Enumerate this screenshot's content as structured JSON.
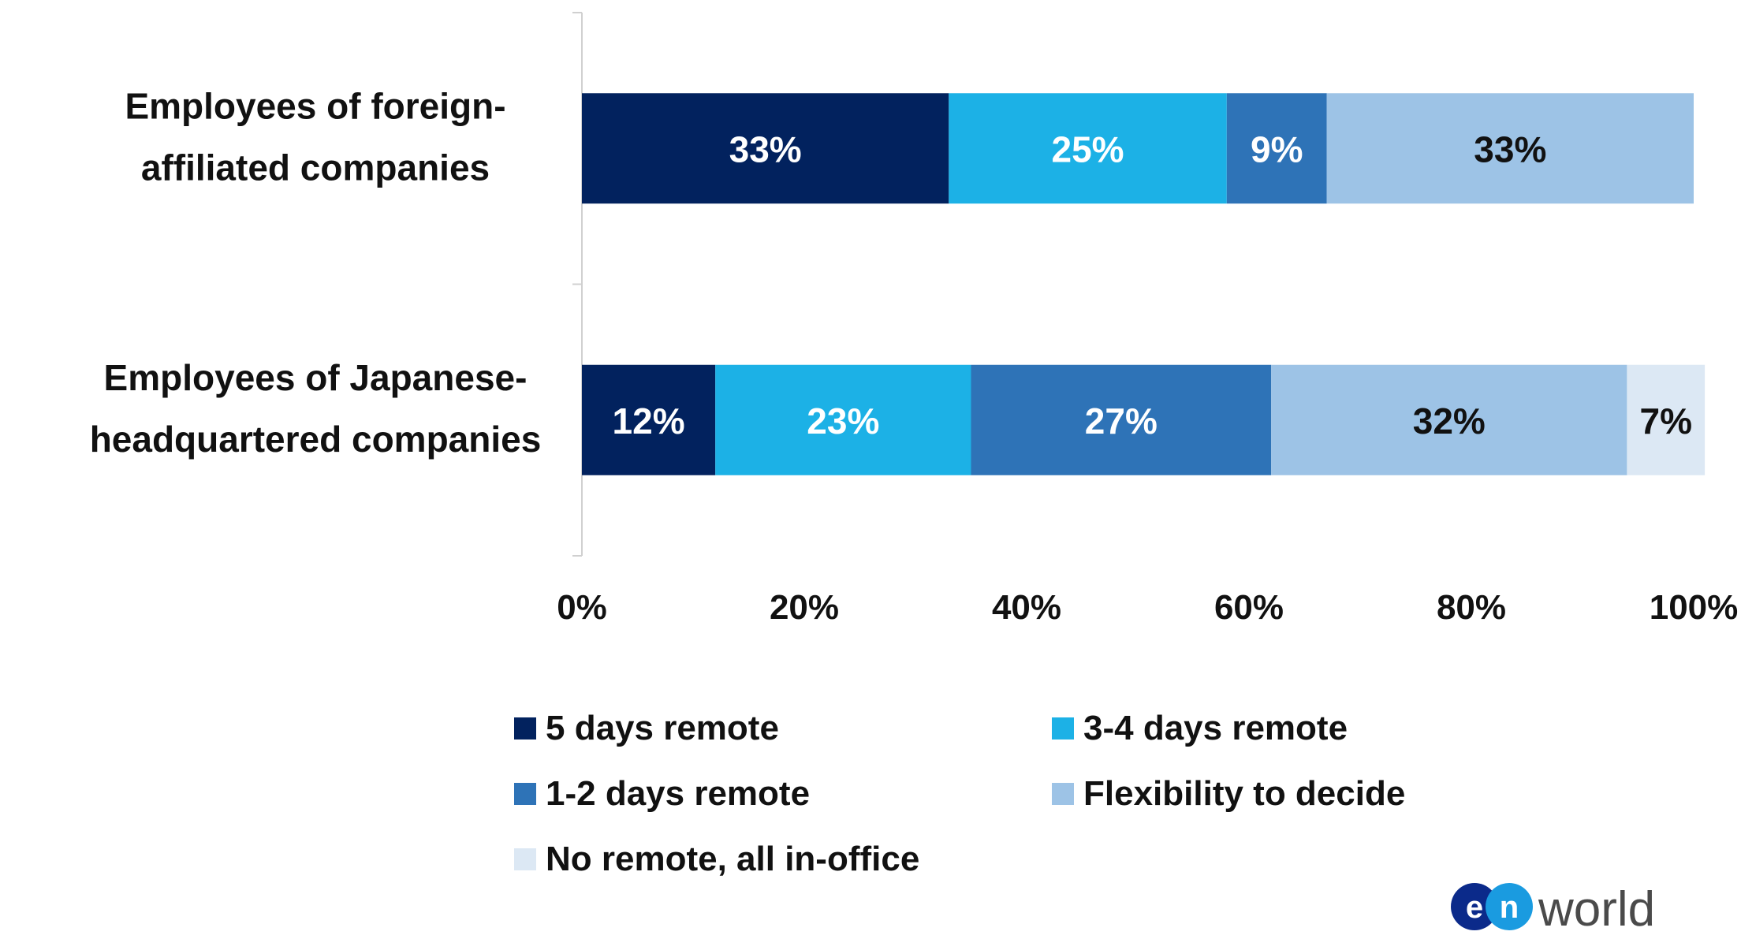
{
  "chart_data": {
    "type": "bar",
    "orientation": "horizontal",
    "stacked": true,
    "categories": [
      "Employees of foreign-affiliated companies",
      "Employees of Japanese-headquartered companies"
    ],
    "category_label_lines": [
      [
        "Employees of foreign-",
        "affiliated companies"
      ],
      [
        "Employees of Japanese-",
        "headquartered companies"
      ]
    ],
    "series": [
      {
        "name": "5 days remote",
        "color": "#02225e",
        "values": [
          33,
          12
        ],
        "labels": [
          "33%",
          "12%"
        ],
        "label_color": "#ffffff"
      },
      {
        "name": "3-4 days remote",
        "color": "#1cb1e6",
        "values": [
          25,
          23
        ],
        "labels": [
          "25%",
          "23%"
        ],
        "label_color": "#ffffff"
      },
      {
        "name": "1-2 days remote",
        "color": "#2e73b7",
        "values": [
          9,
          27
        ],
        "labels": [
          "9%",
          "27%"
        ],
        "label_color": "#ffffff"
      },
      {
        "name": "Flexibility to decide",
        "color": "#9dc3e6",
        "values": [
          33,
          32
        ],
        "labels": [
          "33%",
          "32%"
        ],
        "label_color": "#111111"
      },
      {
        "name": "No remote, all in-office",
        "color": "#dce8f4",
        "values": [
          0,
          7
        ],
        "labels": [
          "",
          "7%"
        ],
        "label_color": "#111111"
      }
    ],
    "xlim": [
      0,
      100
    ],
    "x_ticks": [
      "0%",
      "20%",
      "40%",
      "60%",
      "80%",
      "100%"
    ],
    "grid": false,
    "legend_position": "bottom",
    "xlabel": "",
    "ylabel": ""
  },
  "logo": {
    "text": "en world",
    "mark": "en",
    "colors": {
      "blue_dark": "#0b2a8a",
      "blue_light": "#1a9be0",
      "text": "#4a4a4a"
    }
  }
}
